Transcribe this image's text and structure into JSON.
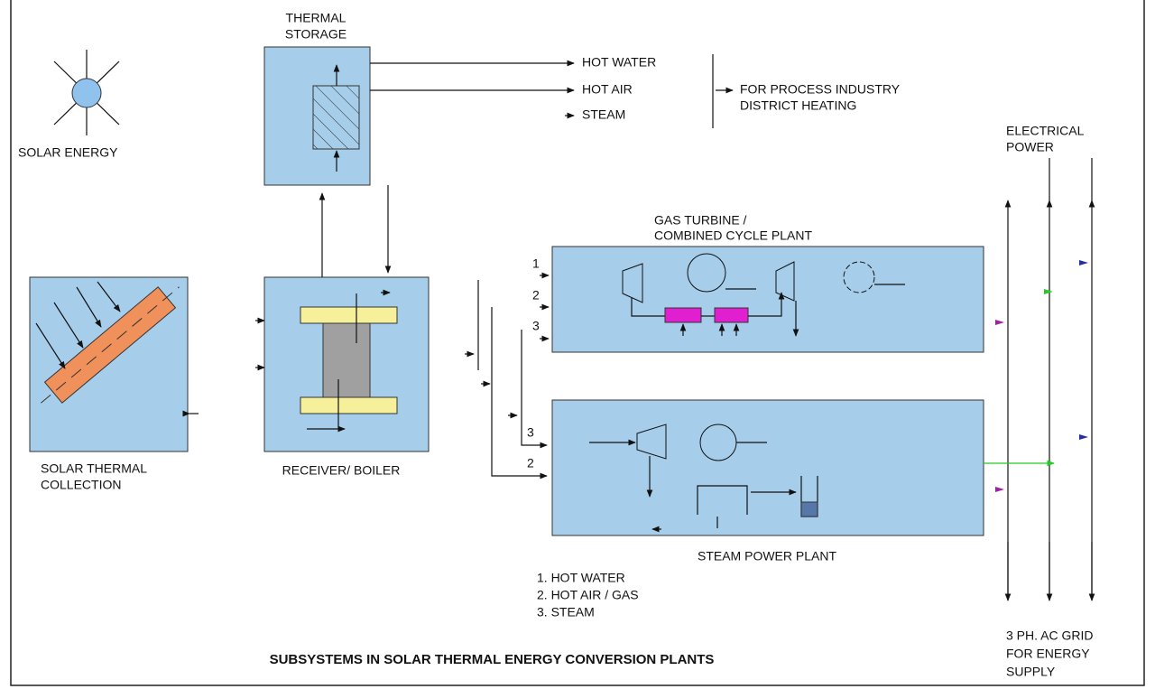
{
  "title": "SUBSYSTEMS IN SOLAR THERMAL ENERGY CONVERSION PLANTS",
  "solar_energy": "SOLAR ENERGY",
  "thermal_storage": {
    "label": [
      "THERMAL",
      "STORAGE"
    ]
  },
  "outputs": {
    "items": [
      "HOT WATER",
      "HOT AIR",
      "STEAM"
    ],
    "uses": [
      "FOR PROCESS INDUSTRY",
      "DISTRICT HEATING"
    ]
  },
  "collection": {
    "label": [
      "SOLAR THERMAL",
      "COLLECTION"
    ]
  },
  "receiver": {
    "label": "RECEIVER/ BOILER"
  },
  "gas_turbine": {
    "label": [
      "GAS TURBINE /",
      "COMBINED CYCLE PLANT"
    ],
    "inputs": [
      "1",
      "2",
      "3"
    ]
  },
  "steam_plant": {
    "label": "STEAM POWER PLANT",
    "inputs": [
      "3",
      "2"
    ]
  },
  "legend": [
    "1. HOT WATER",
    "2. HOT AIR / GAS",
    "3. STEAM"
  ],
  "electrical": {
    "label": [
      "ELECTRICAL",
      "POWER"
    ]
  },
  "grid": {
    "label": [
      "3 PH. AC GRID",
      "FOR ENERGY",
      "SUPPLY"
    ]
  }
}
